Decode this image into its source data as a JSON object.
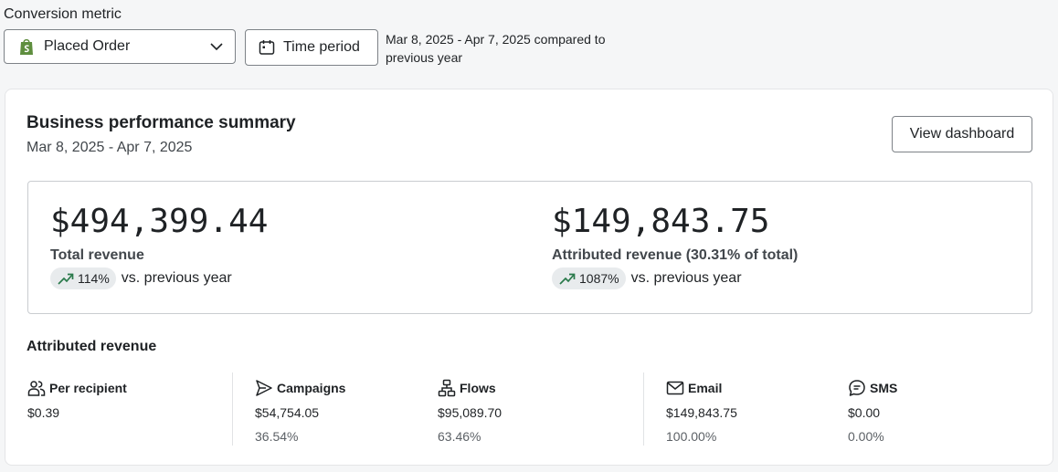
{
  "conversion_metric": {
    "label": "Conversion metric",
    "selected": "Placed Order",
    "icon": "shopify-bag-icon"
  },
  "time_period": {
    "button_label": "Time period",
    "compare_text": "Mar 8, 2025 - Apr 7, 2025 compared to previous year"
  },
  "summary": {
    "title": "Business performance summary",
    "date_range": "Mar 8, 2025 - Apr 7, 2025",
    "view_button": "View dashboard",
    "total": {
      "value": "$494,399.44",
      "label": "Total revenue",
      "change": "114%",
      "vs": "vs. previous year"
    },
    "attributed": {
      "value": "$149,843.75",
      "label": "Attributed revenue (30.31% of total)",
      "change": "1087%",
      "vs": "vs. previous year"
    }
  },
  "attributed_revenue": {
    "title": "Attributed revenue",
    "per_recipient": {
      "label": "Per recipient",
      "value": "$0.39"
    },
    "campaigns": {
      "label": "Campaigns",
      "value": "$54,754.05",
      "pct": "36.54%"
    },
    "flows": {
      "label": "Flows",
      "value": "$95,089.70",
      "pct": "63.46%"
    },
    "email": {
      "label": "Email",
      "value": "$149,843.75",
      "pct": "100.00%"
    },
    "sms": {
      "label": "SMS",
      "value": "$0.00",
      "pct": "0.00%"
    }
  },
  "colors": {
    "trend_up": "#2a7a4b",
    "pill_bg": "#e8ebed",
    "shopify_green": "#5e8e3e"
  }
}
